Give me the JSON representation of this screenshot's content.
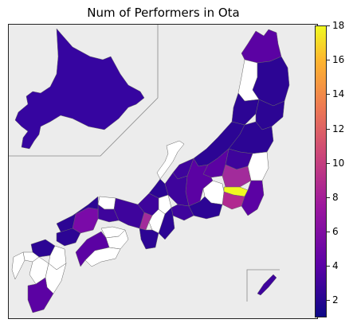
{
  "title": "Num of Performers in Ota",
  "colorbar": {
    "min": 1,
    "max": 18,
    "ticks": [
      2,
      4,
      6,
      8,
      10,
      12,
      14,
      16,
      18
    ],
    "colormap": "plasma"
  },
  "map": {
    "inset_boxes": [
      "hokkaido-inset",
      "okinawa-inset"
    ],
    "colors": {
      "background": "#ececec",
      "no_data": "#ffffff",
      "low": "#2c0594",
      "mid_low": "#3e049c",
      "mid": "#5b02a3",
      "mid_high": "#a22b9b",
      "magenta": "#b12a90",
      "high": "#f0f921"
    }
  }
}
